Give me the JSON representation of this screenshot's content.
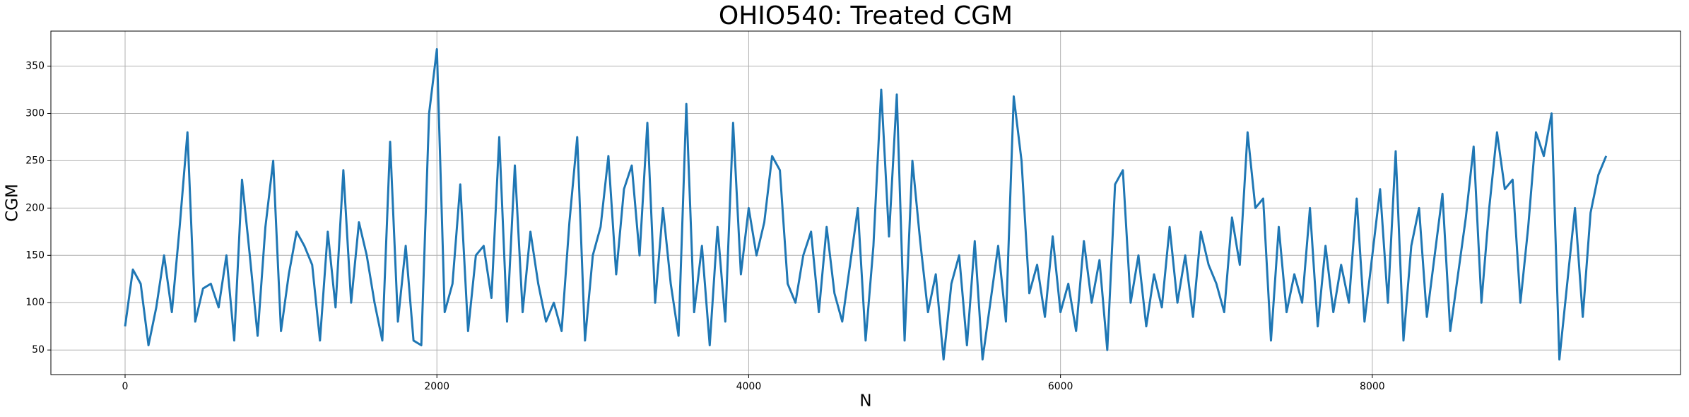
{
  "chart_data": {
    "type": "line",
    "title": "OHIO540: Treated CGM",
    "x_label": "N",
    "y_label": "CGM",
    "color": "#1f77b4",
    "grid": true,
    "xlim": [
      -476,
      9977
    ],
    "xticks": [
      0,
      2000,
      4000,
      6000,
      8000
    ],
    "ylim": [
      24,
      387
    ],
    "yticks": [
      50,
      100,
      150,
      200,
      250,
      300,
      350
    ],
    "x": [
      0,
      50,
      100,
      150,
      200,
      250,
      300,
      350,
      400,
      450,
      500,
      550,
      600,
      650,
      700,
      750,
      800,
      850,
      900,
      950,
      1000,
      1050,
      1100,
      1150,
      1200,
      1250,
      1300,
      1350,
      1400,
      1450,
      1500,
      1550,
      1600,
      1650,
      1700,
      1750,
      1800,
      1850,
      1900,
      1950,
      2000,
      2050,
      2100,
      2150,
      2200,
      2250,
      2300,
      2350,
      2400,
      2450,
      2500,
      2550,
      2600,
      2650,
      2700,
      2750,
      2800,
      2850,
      2900,
      2950,
      3000,
      3050,
      3100,
      3150,
      3200,
      3250,
      3300,
      3350,
      3400,
      3450,
      3500,
      3550,
      3600,
      3650,
      3700,
      3750,
      3800,
      3850,
      3900,
      3950,
      4000,
      4050,
      4100,
      4150,
      4200,
      4250,
      4300,
      4350,
      4400,
      4450,
      4500,
      4550,
      4600,
      4650,
      4700,
      4750,
      4800,
      4850,
      4900,
      4950,
      5000,
      5050,
      5100,
      5150,
      5200,
      5250,
      5300,
      5350,
      5400,
      5450,
      5500,
      5550,
      5600,
      5650,
      5700,
      5750,
      5800,
      5850,
      5900,
      5950,
      6000,
      6050,
      6100,
      6150,
      6200,
      6250,
      6300,
      6350,
      6400,
      6450,
      6500,
      6550,
      6600,
      6650,
      6700,
      6750,
      6800,
      6850,
      6900,
      6950,
      7000,
      7050,
      7100,
      7150,
      7200,
      7250,
      7300,
      7350,
      7400,
      7450,
      7500,
      7550,
      7600,
      7650,
      7700,
      7750,
      7800,
      7850,
      7900,
      7950,
      8000,
      8050,
      8100,
      8150,
      8200,
      8250,
      8300,
      8350,
      8400,
      8450,
      8500,
      8550,
      8600,
      8650,
      8700,
      8750,
      8800,
      8850,
      8900,
      8950,
      9000,
      9050,
      9100,
      9150,
      9200,
      9250,
      9300,
      9350,
      9400,
      9450,
      9500
    ],
    "values": [
      75,
      135,
      120,
      55,
      95,
      150,
      90,
      180,
      280,
      80,
      115,
      120,
      95,
      150,
      60,
      230,
      150,
      65,
      180,
      250,
      70,
      130,
      175,
      160,
      140,
      60,
      175,
      95,
      240,
      100,
      185,
      150,
      100,
      60,
      270,
      80,
      160,
      60,
      55,
      300,
      368,
      90,
      120,
      225,
      70,
      150,
      160,
      105,
      275,
      80,
      245,
      90,
      175,
      120,
      80,
      100,
      70,
      185,
      275,
      60,
      150,
      180,
      255,
      130,
      220,
      245,
      150,
      290,
      100,
      200,
      120,
      65,
      310,
      90,
      160,
      55,
      180,
      80,
      290,
      130,
      200,
      150,
      185,
      255,
      240,
      120,
      100,
      150,
      175,
      90,
      180,
      110,
      80,
      140,
      200,
      60,
      160,
      325,
      170,
      320,
      60,
      250,
      165,
      90,
      130,
      40,
      120,
      150,
      55,
      165,
      40,
      100,
      160,
      80,
      318,
      250,
      110,
      140,
      85,
      170,
      90,
      120,
      70,
      165,
      100,
      145,
      50,
      225,
      240,
      100,
      150,
      75,
      130,
      95,
      180,
      100,
      150,
      85,
      175,
      140,
      120,
      90,
      190,
      140,
      280,
      200,
      210,
      60,
      180,
      90,
      130,
      100,
      200,
      75,
      160,
      90,
      140,
      100,
      210,
      80,
      150,
      220,
      100,
      260,
      60,
      160,
      200,
      85,
      150,
      215,
      70,
      130,
      190,
      265,
      100,
      200,
      280,
      220,
      230,
      100,
      180,
      280,
      255,
      300,
      40,
      120,
      200,
      85,
      195,
      235,
      255
    ]
  }
}
